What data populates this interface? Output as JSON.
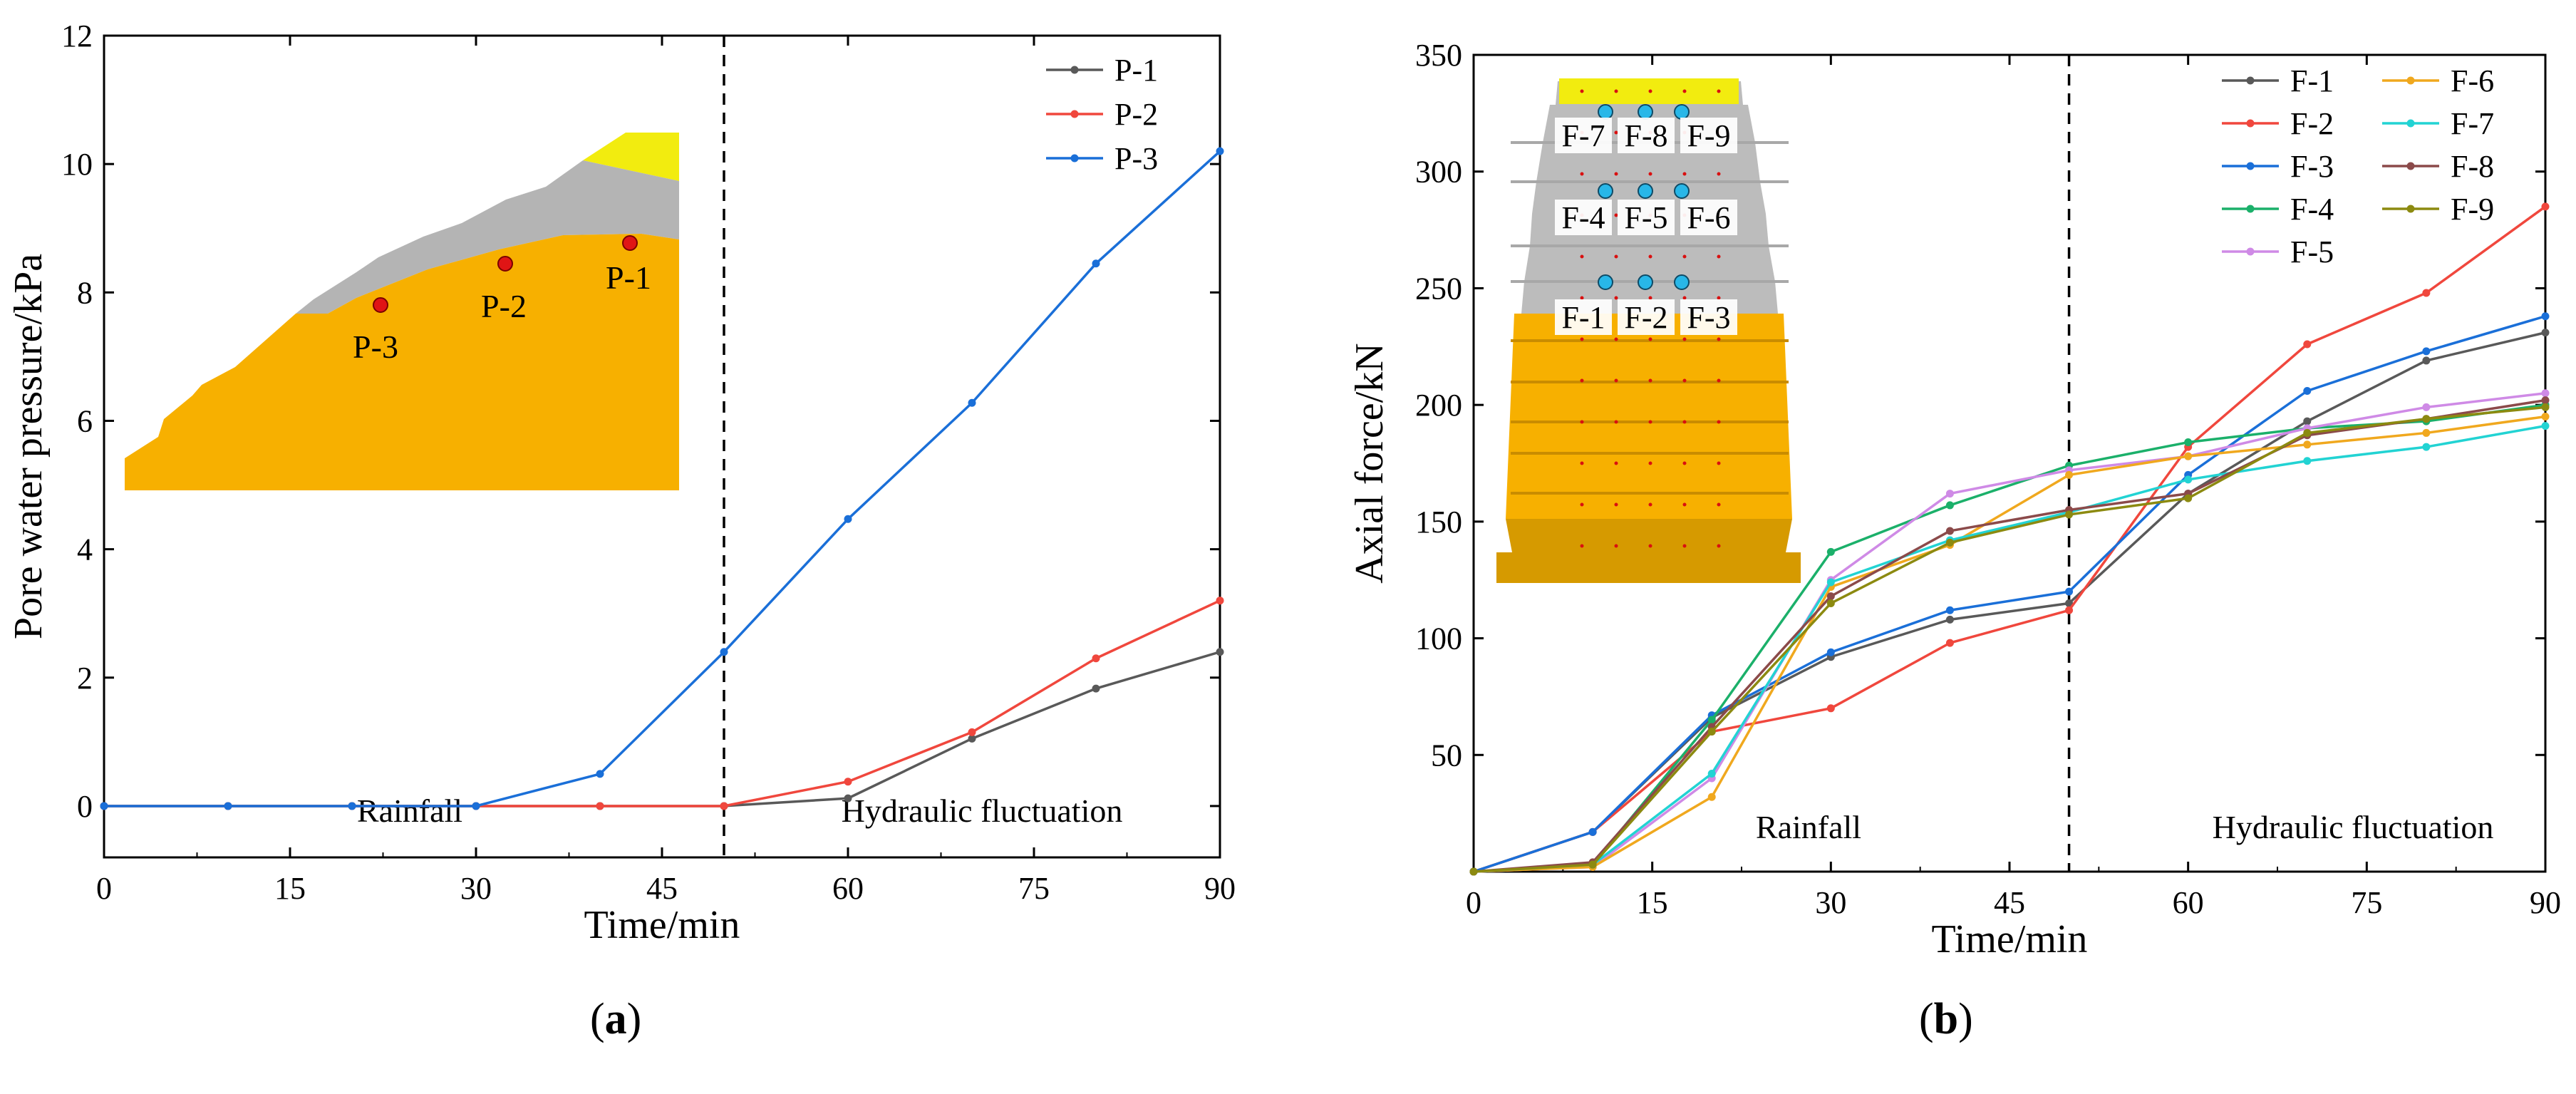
{
  "charts": [
    {
      "id": "a",
      "type": "line",
      "xlabel": "Time/min",
      "ylabel": "Pore water pressure/kPa",
      "xlim": [
        0,
        90
      ],
      "ylim": [
        -0.8,
        12
      ],
      "xticks": [
        0,
        15,
        30,
        45,
        60,
        75,
        90
      ],
      "yticks": [
        0,
        2,
        4,
        6,
        8,
        10,
        12
      ],
      "divider_x": 50,
      "phase_labels": [
        "Rainfall",
        "Hydraulic fluctuation"
      ],
      "legend": "top-right",
      "series": [
        {
          "name": "P-1",
          "color": "#595959",
          "x": [
            0,
            10,
            20,
            30,
            40,
            50,
            60,
            70,
            80,
            90
          ],
          "y": [
            0,
            0,
            0,
            0,
            0,
            0,
            0.12,
            1.05,
            1.83,
            2.4
          ]
        },
        {
          "name": "P-2",
          "color": "#f0473d",
          "x": [
            0,
            10,
            20,
            30,
            40,
            50,
            60,
            70,
            80,
            90
          ],
          "y": [
            0,
            0,
            0,
            0,
            0,
            0,
            0.38,
            1.15,
            2.3,
            3.2
          ]
        },
        {
          "name": "P-3",
          "color": "#1a6fd8",
          "x": [
            0,
            10,
            20,
            30,
            40,
            50,
            60,
            70,
            80,
            90
          ],
          "y": [
            0,
            0,
            0,
            0,
            0.5,
            2.4,
            4.47,
            6.28,
            8.45,
            10.2
          ]
        }
      ],
      "inset_labels": [
        "P-1",
        "P-2",
        "P-3"
      ],
      "caption": "a"
    },
    {
      "id": "b",
      "type": "line",
      "xlabel": "Time/min",
      "ylabel": "Axial force/kN",
      "xlim": [
        0,
        90
      ],
      "ylim": [
        0,
        350
      ],
      "xticks": [
        0,
        15,
        30,
        45,
        60,
        75,
        90
      ],
      "yticks": [
        50,
        100,
        150,
        200,
        250,
        300,
        350
      ],
      "divider_x": 50,
      "phase_labels": [
        "Rainfall",
        "Hydraulic fluctuation"
      ],
      "legend": "top-right",
      "series": [
        {
          "name": "F-1",
          "color": "#595959",
          "x": [
            0,
            10,
            20,
            30,
            40,
            50,
            60,
            70,
            80,
            90
          ],
          "y": [
            0,
            17,
            66,
            92,
            108,
            115,
            162,
            193,
            219,
            231
          ]
        },
        {
          "name": "F-2",
          "color": "#f0473d",
          "x": [
            0,
            10,
            20,
            30,
            40,
            50,
            60,
            70,
            80,
            90
          ],
          "y": [
            0,
            17,
            60,
            70,
            98,
            112,
            182,
            226,
            248,
            285
          ]
        },
        {
          "name": "F-3",
          "color": "#1a6fd8",
          "x": [
            0,
            10,
            20,
            30,
            40,
            50,
            60,
            70,
            80,
            90
          ],
          "y": [
            0,
            17,
            67,
            94,
            112,
            120,
            170,
            206,
            223,
            238
          ]
        },
        {
          "name": "F-4",
          "color": "#1bb06a",
          "x": [
            0,
            10,
            20,
            30,
            40,
            50,
            60,
            70,
            80,
            90
          ],
          "y": [
            0,
            3,
            65,
            137,
            157,
            174,
            184,
            190,
            193,
            200
          ]
        },
        {
          "name": "F-5",
          "color": "#cf8ae6",
          "x": [
            0,
            10,
            20,
            30,
            40,
            50,
            60,
            70,
            80,
            90
          ],
          "y": [
            0,
            2,
            40,
            125,
            162,
            172,
            178,
            190,
            199,
            205
          ]
        },
        {
          "name": "F-6",
          "color": "#f0a81e",
          "x": [
            0,
            10,
            20,
            30,
            40,
            50,
            60,
            70,
            80,
            90
          ],
          "y": [
            0,
            2,
            32,
            122,
            140,
            170,
            178,
            183,
            188,
            195
          ]
        },
        {
          "name": "F-7",
          "color": "#22d3d3",
          "x": [
            0,
            10,
            20,
            30,
            40,
            50,
            60,
            70,
            80,
            90
          ],
          "y": [
            0,
            3,
            42,
            124,
            142,
            154,
            168,
            176,
            182,
            191
          ]
        },
        {
          "name": "F-8",
          "color": "#8b4a4a",
          "x": [
            0,
            10,
            20,
            30,
            40,
            50,
            60,
            70,
            80,
            90
          ],
          "y": [
            0,
            4,
            62,
            118,
            146,
            155,
            162,
            187,
            194,
            202
          ]
        },
        {
          "name": "F-9",
          "color": "#8c8a10",
          "x": [
            0,
            10,
            20,
            30,
            40,
            50,
            60,
            70,
            80,
            90
          ],
          "y": [
            0,
            3,
            60,
            115,
            141,
            153,
            160,
            188,
            194,
            199
          ]
        }
      ],
      "inset_labels": [
        "F-7",
        "F-8",
        "F-9",
        "F-4",
        "F-5",
        "F-6",
        "F-1",
        "F-2",
        "F-3"
      ],
      "caption": "b"
    }
  ],
  "chart_data": [
    {
      "type": "line",
      "title": "(a)",
      "xlabel": "Time/min",
      "ylabel": "Pore water pressure/kPa",
      "series": [
        {
          "name": "P-1",
          "x": [
            0,
            10,
            20,
            30,
            40,
            50,
            60,
            70,
            80,
            90
          ],
          "y": [
            0,
            0,
            0,
            0,
            0,
            0,
            0.12,
            1.05,
            1.83,
            2.4
          ]
        },
        {
          "name": "P-2",
          "x": [
            0,
            10,
            20,
            30,
            40,
            50,
            60,
            70,
            80,
            90
          ],
          "y": [
            0,
            0,
            0,
            0,
            0,
            0,
            0.38,
            1.15,
            2.3,
            3.2
          ]
        },
        {
          "name": "P-3",
          "x": [
            0,
            10,
            20,
            30,
            40,
            50,
            60,
            70,
            80,
            90
          ],
          "y": [
            0,
            0,
            0,
            0,
            0.5,
            2.4,
            4.47,
            6.28,
            8.45,
            10.2
          ]
        }
      ]
    },
    {
      "type": "line",
      "title": "(b)",
      "xlabel": "Time/min",
      "ylabel": "Axial force/kN",
      "series": [
        {
          "name": "F-1",
          "x": [
            0,
            10,
            20,
            30,
            40,
            50,
            60,
            70,
            80,
            90
          ],
          "y": [
            0,
            17,
            66,
            92,
            108,
            115,
            162,
            193,
            219,
            231
          ]
        },
        {
          "name": "F-2",
          "x": [
            0,
            10,
            20,
            30,
            40,
            50,
            60,
            70,
            80,
            90
          ],
          "y": [
            0,
            17,
            60,
            70,
            98,
            112,
            182,
            226,
            248,
            285
          ]
        },
        {
          "name": "F-3",
          "x": [
            0,
            10,
            20,
            30,
            40,
            50,
            60,
            70,
            80,
            90
          ],
          "y": [
            0,
            17,
            67,
            94,
            112,
            120,
            170,
            206,
            223,
            238
          ]
        },
        {
          "name": "F-4",
          "x": [
            0,
            10,
            20,
            30,
            40,
            50,
            60,
            70,
            80,
            90
          ],
          "y": [
            0,
            3,
            65,
            137,
            157,
            174,
            184,
            190,
            193,
            200
          ]
        },
        {
          "name": "F-5",
          "x": [
            0,
            10,
            20,
            30,
            40,
            50,
            60,
            70,
            80,
            90
          ],
          "y": [
            0,
            2,
            40,
            125,
            162,
            172,
            178,
            190,
            199,
            205
          ]
        },
        {
          "name": "F-6",
          "x": [
            0,
            10,
            20,
            30,
            40,
            50,
            60,
            70,
            80,
            90
          ],
          "y": [
            0,
            2,
            32,
            122,
            140,
            170,
            178,
            183,
            188,
            195
          ]
        },
        {
          "name": "F-7",
          "x": [
            0,
            10,
            20,
            30,
            40,
            50,
            60,
            70,
            80,
            90
          ],
          "y": [
            0,
            3,
            42,
            124,
            142,
            154,
            168,
            176,
            182,
            191
          ]
        },
        {
          "name": "F-8",
          "x": [
            0,
            10,
            20,
            30,
            40,
            50,
            60,
            70,
            80,
            90
          ],
          "y": [
            0,
            4,
            62,
            118,
            146,
            155,
            162,
            187,
            194,
            202
          ]
        },
        {
          "name": "F-9",
          "x": [
            0,
            10,
            20,
            30,
            40,
            50,
            60,
            70,
            80,
            90
          ],
          "y": [
            0,
            3,
            60,
            115,
            141,
            153,
            160,
            188,
            194,
            199
          ]
        }
      ]
    }
  ]
}
